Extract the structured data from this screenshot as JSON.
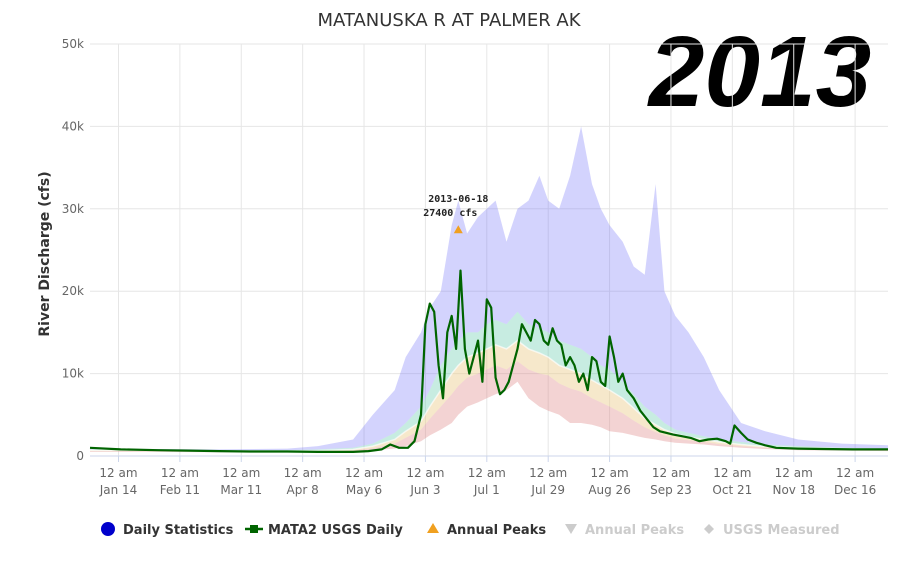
{
  "chart_data": {
    "type": "area",
    "title": "MATANUSKA R AT PALMER AK",
    "year_label": "2013",
    "ylabel": "River Discharge (cfs)",
    "xlabel": "",
    "ylim": [
      0,
      50000
    ],
    "yticks": [
      {
        "value": 0,
        "label": "0"
      },
      {
        "value": 10000,
        "label": "10k"
      },
      {
        "value": 20000,
        "label": "20k"
      },
      {
        "value": 30000,
        "label": "30k"
      },
      {
        "value": 40000,
        "label": "40k"
      },
      {
        "value": 50000,
        "label": "50k"
      }
    ],
    "xlim": [
      "2013-01-01",
      "2013-12-31"
    ],
    "xticks": [
      {
        "date": "2013-01-14",
        "line1": "12 am",
        "line2": "Jan 14"
      },
      {
        "date": "2013-02-11",
        "line1": "12 am",
        "line2": "Feb 11"
      },
      {
        "date": "2013-03-11",
        "line1": "12 am",
        "line2": "Mar 11"
      },
      {
        "date": "2013-04-08",
        "line1": "12 am",
        "line2": "Apr 8"
      },
      {
        "date": "2013-05-06",
        "line1": "12 am",
        "line2": "May 6"
      },
      {
        "date": "2013-06-03",
        "line1": "12 am",
        "line2": "Jun 3"
      },
      {
        "date": "2013-07-01",
        "line1": "12 am",
        "line2": "Jul 1"
      },
      {
        "date": "2013-07-29",
        "line1": "12 am",
        "line2": "Jul 29"
      },
      {
        "date": "2013-08-26",
        "line1": "12 am",
        "line2": "Aug 26"
      },
      {
        "date": "2013-09-23",
        "line1": "12 am",
        "line2": "Sep 23"
      },
      {
        "date": "2013-10-21",
        "line1": "12 am",
        "line2": "Oct 21"
      },
      {
        "date": "2013-11-18",
        "line1": "12 am",
        "line2": "Nov 18"
      },
      {
        "date": "2013-12-16",
        "line1": "12 am",
        "line2": "Dec 16"
      }
    ],
    "grid": true,
    "legend_position": "bottom",
    "series": [
      {
        "name": "Daily Statistics",
        "color": "#0000ff",
        "bands": {
          "x": [
            "2013-01-01",
            "2013-02-01",
            "2013-03-01",
            "2013-04-01",
            "2013-04-15",
            "2013-05-01",
            "2013-05-10",
            "2013-05-20",
            "2013-05-25",
            "2013-06-01",
            "2013-06-05",
            "2013-06-10",
            "2013-06-15",
            "2013-06-18",
            "2013-06-22",
            "2013-06-27",
            "2013-07-01",
            "2013-07-05",
            "2013-07-10",
            "2013-07-15",
            "2013-07-20",
            "2013-07-25",
            "2013-07-29",
            "2013-08-03",
            "2013-08-08",
            "2013-08-13",
            "2013-08-18",
            "2013-08-22",
            "2013-08-26",
            "2013-09-01",
            "2013-09-06",
            "2013-09-11",
            "2013-09-16",
            "2013-09-20",
            "2013-09-25",
            "2013-10-01",
            "2013-10-08",
            "2013-10-15",
            "2013-10-25",
            "2013-11-05",
            "2013-11-20",
            "2013-12-10",
            "2013-12-31"
          ],
          "max": [
            900,
            850,
            800,
            900,
            1200,
            2000,
            5000,
            8000,
            12000,
            15000,
            18000,
            20000,
            28000,
            31000,
            27000,
            29000,
            30000,
            31000,
            26000,
            30000,
            31000,
            34000,
            31000,
            30000,
            34000,
            40000,
            33000,
            30000,
            28000,
            26000,
            23000,
            22000,
            33000,
            20000,
            17000,
            15000,
            12000,
            8000,
            4000,
            3000,
            2000,
            1500,
            1300
          ],
          "p75": [
            800,
            720,
            650,
            700,
            800,
            1000,
            1500,
            2800,
            4000,
            6000,
            8000,
            11000,
            13000,
            14000,
            15000,
            15000,
            16000,
            16500,
            16000,
            17500,
            16000,
            15500,
            15000,
            14000,
            13500,
            13000,
            12000,
            11000,
            10500,
            9000,
            7500,
            6000,
            5000,
            4000,
            3200,
            2800,
            2400,
            2000,
            1700,
            1400,
            1200,
            1000,
            900
          ],
          "p50": [
            700,
            650,
            600,
            600,
            650,
            800,
            1200,
            2000,
            3000,
            4200,
            6000,
            8000,
            10000,
            11000,
            12000,
            12500,
            13000,
            13500,
            13000,
            14000,
            13000,
            12500,
            12000,
            11000,
            10500,
            10000,
            9200,
            8600,
            8000,
            7000,
            5800,
            4600,
            3800,
            3200,
            2700,
            2300,
            2000,
            1700,
            1400,
            1150,
            1000,
            900,
            800
          ],
          "p25": [
            600,
            560,
            520,
            520,
            550,
            680,
            950,
            1500,
            2200,
            3200,
            4500,
            6000,
            7500,
            8500,
            9500,
            10000,
            10500,
            11000,
            10500,
            11500,
            10500,
            10000,
            9800,
            8800,
            8200,
            7800,
            7000,
            6500,
            6000,
            5200,
            4300,
            3500,
            2900,
            2500,
            2100,
            1900,
            1700,
            1450,
            1200,
            1000,
            880,
            780,
            700
          ],
          "min": [
            500,
            480,
            450,
            450,
            480,
            550,
            700,
            900,
            1200,
            1800,
            2500,
            3200,
            4000,
            5000,
            6000,
            6500,
            7000,
            7500,
            8000,
            9000,
            7000,
            6000,
            5500,
            5000,
            4000,
            4000,
            3800,
            3500,
            3000,
            2800,
            2500,
            2200,
            2000,
            1800,
            1600,
            1500,
            1400,
            1200,
            1000,
            850,
            700,
            650,
            600
          ]
        }
      },
      {
        "name": "MATA2 USGS Daily",
        "color": "#006400",
        "x": [
          "2013-01-01",
          "2013-01-15",
          "2013-02-01",
          "2013-02-15",
          "2013-03-01",
          "2013-03-15",
          "2013-04-01",
          "2013-04-15",
          "2013-05-01",
          "2013-05-08",
          "2013-05-14",
          "2013-05-18",
          "2013-05-22",
          "2013-05-26",
          "2013-05-29",
          "2013-06-01",
          "2013-06-03",
          "2013-06-05",
          "2013-06-07",
          "2013-06-09",
          "2013-06-11",
          "2013-06-13",
          "2013-06-15",
          "2013-06-17",
          "2013-06-19",
          "2013-06-21",
          "2013-06-23",
          "2013-06-25",
          "2013-06-27",
          "2013-06-29",
          "2013-07-01",
          "2013-07-03",
          "2013-07-05",
          "2013-07-07",
          "2013-07-09",
          "2013-07-11",
          "2013-07-13",
          "2013-07-15",
          "2013-07-17",
          "2013-07-19",
          "2013-07-21",
          "2013-07-23",
          "2013-07-25",
          "2013-07-27",
          "2013-07-29",
          "2013-07-31",
          "2013-08-02",
          "2013-08-04",
          "2013-08-06",
          "2013-08-08",
          "2013-08-10",
          "2013-08-12",
          "2013-08-14",
          "2013-08-16",
          "2013-08-18",
          "2013-08-20",
          "2013-08-22",
          "2013-08-24",
          "2013-08-26",
          "2013-08-28",
          "2013-08-30",
          "2013-09-01",
          "2013-09-03",
          "2013-09-06",
          "2013-09-09",
          "2013-09-12",
          "2013-09-15",
          "2013-09-18",
          "2013-09-21",
          "2013-09-24",
          "2013-09-28",
          "2013-10-02",
          "2013-10-06",
          "2013-10-10",
          "2013-10-14",
          "2013-10-18",
          "2013-10-20",
          "2013-10-22",
          "2013-10-25",
          "2013-10-28",
          "2013-11-01",
          "2013-11-05",
          "2013-11-10",
          "2013-11-20",
          "2013-12-01",
          "2013-12-15",
          "2013-12-31"
        ],
        "values": [
          1000,
          800,
          700,
          650,
          600,
          550,
          550,
          500,
          500,
          600,
          800,
          1400,
          1000,
          1000,
          1800,
          5000,
          16000,
          18500,
          17500,
          11000,
          7000,
          15000,
          17000,
          13000,
          22500,
          13000,
          10000,
          12000,
          14000,
          9000,
          19000,
          18000,
          9500,
          7500,
          8000,
          9000,
          11000,
          13000,
          16000,
          15000,
          14000,
          16500,
          16000,
          14000,
          13500,
          15500,
          14000,
          13500,
          11000,
          12000,
          11000,
          9000,
          10000,
          8000,
          12000,
          11500,
          9000,
          8500,
          14500,
          12000,
          9000,
          10000,
          8000,
          7000,
          5500,
          4500,
          3500,
          3000,
          2800,
          2600,
          2400,
          2200,
          1800,
          2000,
          2100,
          1800,
          1500,
          3700,
          2800,
          2000,
          1600,
          1300,
          1000,
          900,
          850,
          800,
          800
        ]
      },
      {
        "name": "Annual Peaks",
        "color": "#f0a020",
        "points": [
          {
            "x": "2013-06-18",
            "y": 27400
          }
        ],
        "annotation": {
          "line1": "2013-06-18",
          "line2": "27400 cfs"
        }
      },
      {
        "name": "Annual Peaks",
        "color": "#cccccc",
        "disabled": true
      },
      {
        "name": "USGS Measured",
        "color": "#cccccc",
        "disabled": true
      }
    ]
  },
  "legend": [
    {
      "label": "Daily Statistics",
      "color": "#0000cc",
      "marker": "circle"
    },
    {
      "label": "MATA2 USGS Daily",
      "color": "#006400",
      "marker": "line-square"
    },
    {
      "label": "Annual Peaks",
      "color": "#f0a020",
      "marker": "triangle-up"
    },
    {
      "label": "Annual Peaks",
      "color": "#cccccc",
      "marker": "triangle-down"
    },
    {
      "label": "USGS Measured",
      "color": "#cccccc",
      "marker": "diamond"
    }
  ]
}
